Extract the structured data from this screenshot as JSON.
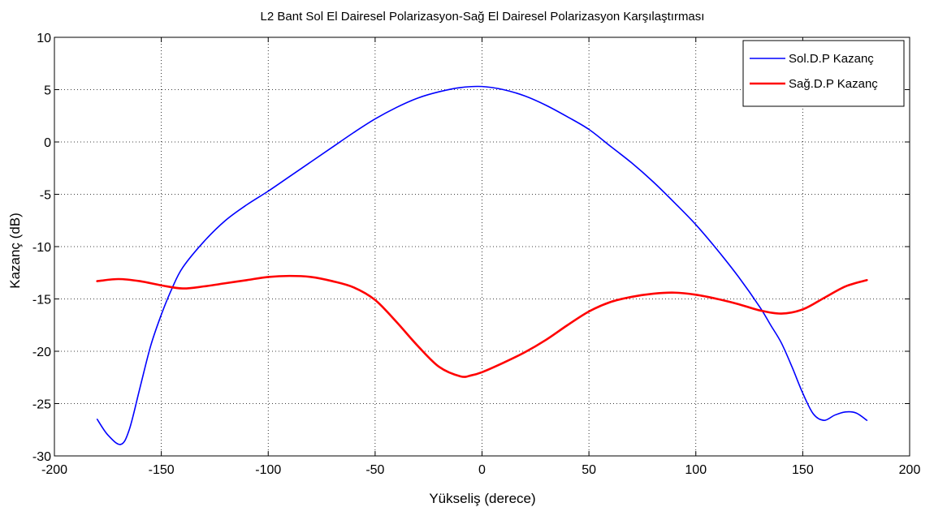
{
  "chart_data": {
    "type": "line",
    "title": "L2 Bant Sol El Dairesel Polarizasyon-Sağ El Dairesel Polarizasyon Karşılaştırması",
    "xlabel": "Yükseliş (derece)",
    "ylabel": "Kazanç (dB)",
    "xlim": [
      -200,
      200
    ],
    "ylim": [
      -30,
      10
    ],
    "xticks": [
      -200,
      -150,
      -100,
      -50,
      0,
      50,
      100,
      150,
      200
    ],
    "yticks": [
      -30,
      -25,
      -20,
      -15,
      -10,
      -5,
      0,
      5,
      10
    ],
    "xtick_labels": [
      "-200",
      "-150",
      "-100",
      "-50",
      "0",
      "50",
      "100",
      "150",
      "200"
    ],
    "ytick_labels": [
      "-30",
      "-25",
      "-20",
      "-15",
      "-10",
      "-5",
      "0",
      "5",
      "10"
    ],
    "grid": true,
    "legend_position": "top-right",
    "series": [
      {
        "name": "Sol.D.P Kazanç",
        "color": "#0000ff",
        "x": [
          -180,
          -175,
          -169,
          -165,
          -160,
          -155,
          -150,
          -145,
          -140,
          -130,
          -120,
          -110,
          -100,
          -90,
          -80,
          -70,
          -60,
          -50,
          -40,
          -30,
          -20,
          -10,
          0,
          10,
          20,
          30,
          40,
          50,
          60,
          70,
          80,
          90,
          100,
          110,
          120,
          130,
          135,
          140,
          145,
          150,
          155,
          160,
          165,
          170,
          175,
          180
        ],
        "y": [
          -26.5,
          -28.0,
          -28.9,
          -27.5,
          -23.5,
          -19.5,
          -16.5,
          -14.0,
          -12.0,
          -9.5,
          -7.5,
          -6.0,
          -4.7,
          -3.3,
          -1.9,
          -0.5,
          0.9,
          2.2,
          3.3,
          4.2,
          4.8,
          5.2,
          5.3,
          5.0,
          4.4,
          3.5,
          2.4,
          1.2,
          -0.4,
          -2.0,
          -3.8,
          -5.8,
          -7.9,
          -10.3,
          -12.9,
          -15.8,
          -17.5,
          -19.2,
          -21.5,
          -24.0,
          -26.0,
          -26.6,
          -26.1,
          -25.8,
          -25.9,
          -26.6
        ]
      },
      {
        "name": "Sağ.D.P Kazanç",
        "color": "#ff0000",
        "x": [
          -180,
          -170,
          -160,
          -150,
          -140,
          -130,
          -120,
          -110,
          -100,
          -90,
          -80,
          -70,
          -60,
          -50,
          -40,
          -30,
          -20,
          -10,
          -5,
          0,
          10,
          20,
          30,
          40,
          50,
          60,
          70,
          80,
          90,
          100,
          110,
          120,
          130,
          140,
          150,
          160,
          170,
          180
        ],
        "y": [
          -13.3,
          -13.1,
          -13.3,
          -13.7,
          -14.0,
          -13.8,
          -13.5,
          -13.2,
          -12.9,
          -12.8,
          -12.9,
          -13.3,
          -13.9,
          -15.1,
          -17.2,
          -19.5,
          -21.5,
          -22.4,
          -22.3,
          -22.0,
          -21.1,
          -20.1,
          -18.9,
          -17.5,
          -16.2,
          -15.3,
          -14.8,
          -14.5,
          -14.4,
          -14.6,
          -15.0,
          -15.5,
          -16.1,
          -16.4,
          -16.0,
          -14.9,
          -13.8,
          -13.2
        ]
      }
    ]
  }
}
